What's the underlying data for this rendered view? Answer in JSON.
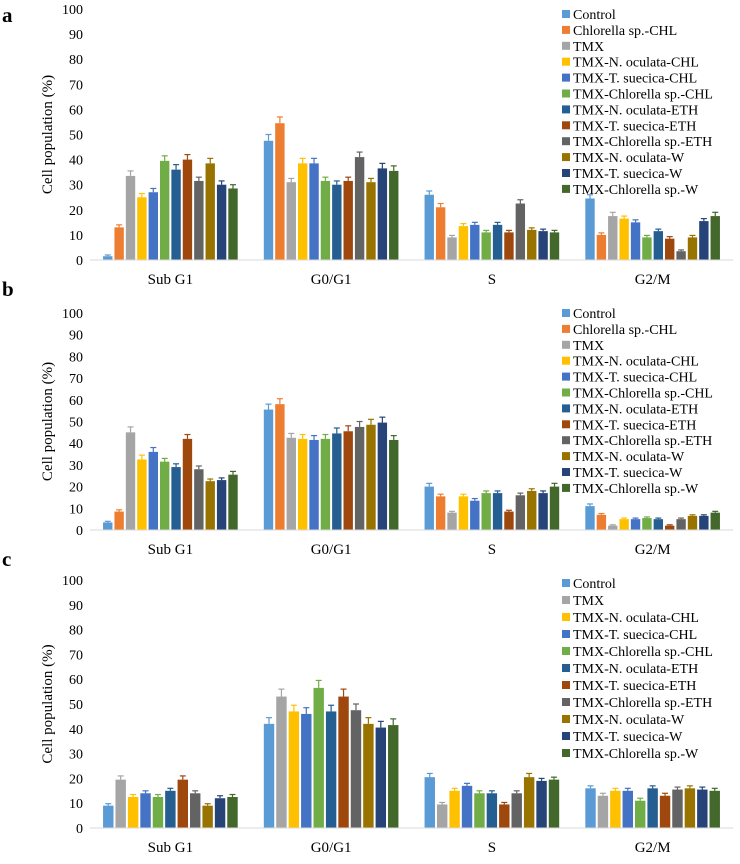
{
  "series_colors": {
    "Control": "#5b9bd5",
    "Chlorella sp.-CHL": "#ed7d31",
    "TMX": "#a5a5a5",
    "TMX-N. oculata-CHL": "#ffc000",
    "TMX-T. suecica-CHL": "#4472c4",
    "TMX-Chlorella sp.-CHL": "#70ad47",
    "TMX-N. oculata-ETH": "#255e91",
    "TMX-T. suecica-ETH": "#9e480e",
    "TMX-Chlorella sp.-ETH": "#636363",
    "TMX-N. oculata-W": "#997300",
    "TMX-T. suecica-W": "#264478",
    "TMX-Chlorella sp.-W": "#43682b"
  },
  "chart_data": [
    {
      "panel": "a",
      "type": "bar",
      "ylabel": "Cell population (%)",
      "xlabel": "",
      "ylim": [
        0,
        100
      ],
      "ytick_step": 10,
      "categories": [
        "Sub G1",
        "G0/G1",
        "S",
        "G2/M"
      ],
      "legend_position": "top-right",
      "series": [
        {
          "name": "Control",
          "values": [
            1.5,
            47.5,
            26,
            24.5
          ],
          "errors": [
            0.5,
            2.5,
            1.5,
            1.5
          ]
        },
        {
          "name": "Chlorella sp.-CHL",
          "values": [
            13,
            54.5,
            21,
            10
          ],
          "errors": [
            1,
            2.5,
            1.5,
            0.8
          ]
        },
        {
          "name": "TMX",
          "values": [
            33.5,
            31,
            9,
            17.5
          ],
          "errors": [
            2,
            1.5,
            0.8,
            1.5
          ]
        },
        {
          "name": "TMX-N. oculata-CHL",
          "values": [
            25,
            38.5,
            13.5,
            16.5
          ],
          "errors": [
            1.5,
            2,
            1,
            1
          ]
        },
        {
          "name": "TMX-T. suecica-CHL",
          "values": [
            27,
            38.5,
            14,
            15
          ],
          "errors": [
            1.5,
            2,
            1,
            1
          ]
        },
        {
          "name": "TMX-Chlorella sp.-CHL",
          "values": [
            39.5,
            31.5,
            11,
            9
          ],
          "errors": [
            2,
            1.5,
            0.8,
            0.8
          ]
        },
        {
          "name": "TMX-N. oculata-ETH",
          "values": [
            36,
            30,
            14,
            11.5
          ],
          "errors": [
            2,
            1.5,
            1,
            0.8
          ]
        },
        {
          "name": "TMX-T. suecica-ETH",
          "values": [
            40,
            31.5,
            11,
            8.5
          ],
          "errors": [
            2,
            1.5,
            0.8,
            0.8
          ]
        },
        {
          "name": "TMX-Chlorella sp.-ETH",
          "values": [
            31.5,
            41,
            22.5,
            3.5
          ],
          "errors": [
            1.5,
            2,
            1.5,
            0.5
          ]
        },
        {
          "name": "TMX-N. oculata-W",
          "values": [
            38.5,
            31,
            12,
            9
          ],
          "errors": [
            2,
            1.5,
            0.8,
            0.8
          ]
        },
        {
          "name": "TMX-T. suecica-W",
          "values": [
            30,
            36.5,
            11.5,
            15.5
          ],
          "errors": [
            1.5,
            2,
            0.8,
            1
          ]
        },
        {
          "name": "TMX-Chlorella sp.-W",
          "values": [
            28.5,
            35.5,
            11,
            17.5
          ],
          "errors": [
            1.5,
            2,
            0.8,
            1.5
          ]
        }
      ]
    },
    {
      "panel": "b",
      "type": "bar",
      "ylabel": "Cell population (%)",
      "xlabel": "",
      "ylim": [
        0,
        100
      ],
      "ytick_step": 10,
      "categories": [
        "Sub G1",
        "G0/G1",
        "S",
        "G2/M"
      ],
      "legend_position": "top-right",
      "series": [
        {
          "name": "Control",
          "values": [
            3.5,
            55.5,
            20,
            11
          ],
          "errors": [
            0.5,
            2.5,
            1.5,
            1
          ]
        },
        {
          "name": "Chlorella sp.-CHL",
          "values": [
            8.5,
            58,
            15.5,
            7
          ],
          "errors": [
            0.8,
            2.5,
            1,
            0.6
          ]
        },
        {
          "name": "TMX",
          "values": [
            45,
            42.5,
            8,
            2
          ],
          "errors": [
            2.5,
            2,
            0.6,
            0.4
          ]
        },
        {
          "name": "TMX-N. oculata-CHL",
          "values": [
            32.5,
            42,
            15.5,
            5
          ],
          "errors": [
            2,
            2,
            1,
            0.5
          ]
        },
        {
          "name": "TMX-T. suecica-CHL",
          "values": [
            36,
            41.5,
            13.5,
            5
          ],
          "errors": [
            2,
            2,
            1,
            0.5
          ]
        },
        {
          "name": "TMX-Chlorella sp.-CHL",
          "values": [
            31.5,
            42,
            17,
            5.5
          ],
          "errors": [
            1.5,
            2,
            1,
            0.5
          ]
        },
        {
          "name": "TMX-N. oculata-ETH",
          "values": [
            29,
            44.5,
            17,
            5
          ],
          "errors": [
            1.5,
            2.5,
            1,
            0.5
          ]
        },
        {
          "name": "TMX-T. suecica-ETH",
          "values": [
            42,
            45.5,
            8.5,
            2
          ],
          "errors": [
            2,
            2.5,
            0.6,
            0.4
          ]
        },
        {
          "name": "TMX-Chlorella sp.-ETH",
          "values": [
            28,
            47.5,
            16,
            5
          ],
          "errors": [
            1.5,
            2.5,
            1,
            0.5
          ]
        },
        {
          "name": "TMX-N. oculata-W",
          "values": [
            22.5,
            48.5,
            18,
            6.5
          ],
          "errors": [
            1,
            2.5,
            1,
            0.5
          ]
        },
        {
          "name": "TMX-T. suecica-W",
          "values": [
            23,
            49.5,
            17,
            6.5
          ],
          "errors": [
            1,
            2.5,
            1,
            0.5
          ]
        },
        {
          "name": "TMX-Chlorella sp.-W",
          "values": [
            25.5,
            41.5,
            20,
            8
          ],
          "errors": [
            1.5,
            2,
            1.5,
            0.6
          ]
        }
      ]
    },
    {
      "panel": "c",
      "type": "bar",
      "ylabel": "Cell population (%)",
      "xlabel": "",
      "ylim": [
        0,
        100
      ],
      "ytick_step": 10,
      "categories": [
        "Sub G1",
        "G0/G1",
        "S",
        "G2/M"
      ],
      "legend_position": "top-right",
      "series": [
        {
          "name": "Control",
          "values": [
            9,
            42,
            20.5,
            16
          ],
          "errors": [
            0.8,
            2.5,
            1.5,
            1
          ]
        },
        {
          "name": "TMX",
          "values": [
            19.5,
            53,
            9.5,
            13
          ],
          "errors": [
            1.5,
            3,
            0.8,
            1
          ]
        },
        {
          "name": "TMX-N. oculata-CHL",
          "values": [
            12.5,
            47,
            15,
            15
          ],
          "errors": [
            1,
            2.5,
            1,
            1
          ]
        },
        {
          "name": "TMX-T. suecica-CHL",
          "values": [
            14,
            46,
            17,
            15
          ],
          "errors": [
            1,
            2.5,
            1,
            1
          ]
        },
        {
          "name": "TMX-Chlorella sp.-CHL",
          "values": [
            12.5,
            56.5,
            14,
            11
          ],
          "errors": [
            1,
            3,
            1,
            1
          ]
        },
        {
          "name": "TMX-N. oculata-ETH",
          "values": [
            15,
            47,
            14,
            16
          ],
          "errors": [
            1,
            2.5,
            1,
            1
          ]
        },
        {
          "name": "TMX-T. suecica-ETH",
          "values": [
            19.5,
            53,
            9.5,
            13
          ],
          "errors": [
            1.5,
            3,
            0.8,
            1
          ]
        },
        {
          "name": "TMX-Chlorella sp.-ETH",
          "values": [
            14,
            47.5,
            14,
            15.5
          ],
          "errors": [
            1,
            2.5,
            1,
            1
          ]
        },
        {
          "name": "TMX-N. oculata-W",
          "values": [
            9,
            42,
            20.5,
            16
          ],
          "errors": [
            0.8,
            2.5,
            1.5,
            1
          ]
        },
        {
          "name": "TMX-T. suecica-W",
          "values": [
            12,
            40.5,
            19,
            15.5
          ],
          "errors": [
            1,
            2.5,
            1,
            1
          ]
        },
        {
          "name": "TMX-Chlorella sp.-W",
          "values": [
            12.5,
            41.5,
            19.5,
            15
          ],
          "errors": [
            1,
            2.5,
            1,
            1
          ]
        }
      ]
    }
  ]
}
